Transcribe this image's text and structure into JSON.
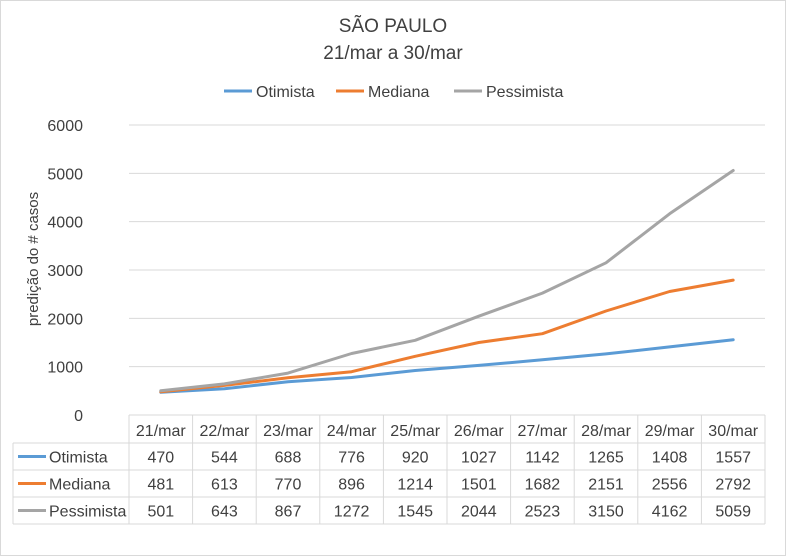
{
  "chart_data": {
    "type": "line",
    "title": "SÃO PAULO",
    "subtitle": "21/mar a 30/mar",
    "xlabel": "",
    "ylabel": "predição do # casos",
    "ylim": [
      0,
      6000
    ],
    "yticks": [
      0,
      1000,
      2000,
      3000,
      4000,
      5000,
      6000
    ],
    "grid": true,
    "legend": "top-center",
    "data_table": true,
    "categories": [
      "21/mar",
      "22/mar",
      "23/mar",
      "24/mar",
      "25/mar",
      "26/mar",
      "27/mar",
      "28/mar",
      "29/mar",
      "30/mar"
    ],
    "series": [
      {
        "name": "Otimista",
        "color": "#5b9bd5",
        "values": [
          470,
          544,
          688,
          776,
          920,
          1027,
          1142,
          1265,
          1408,
          1557
        ]
      },
      {
        "name": "Mediana",
        "color": "#ed7d31",
        "values": [
          481,
          613,
          770,
          896,
          1214,
          1501,
          1682,
          2151,
          2556,
          2792
        ]
      },
      {
        "name": "Pessimista",
        "color": "#a5a5a5",
        "values": [
          501,
          643,
          867,
          1272,
          1545,
          2044,
          2523,
          3150,
          4162,
          5059
        ]
      }
    ]
  }
}
